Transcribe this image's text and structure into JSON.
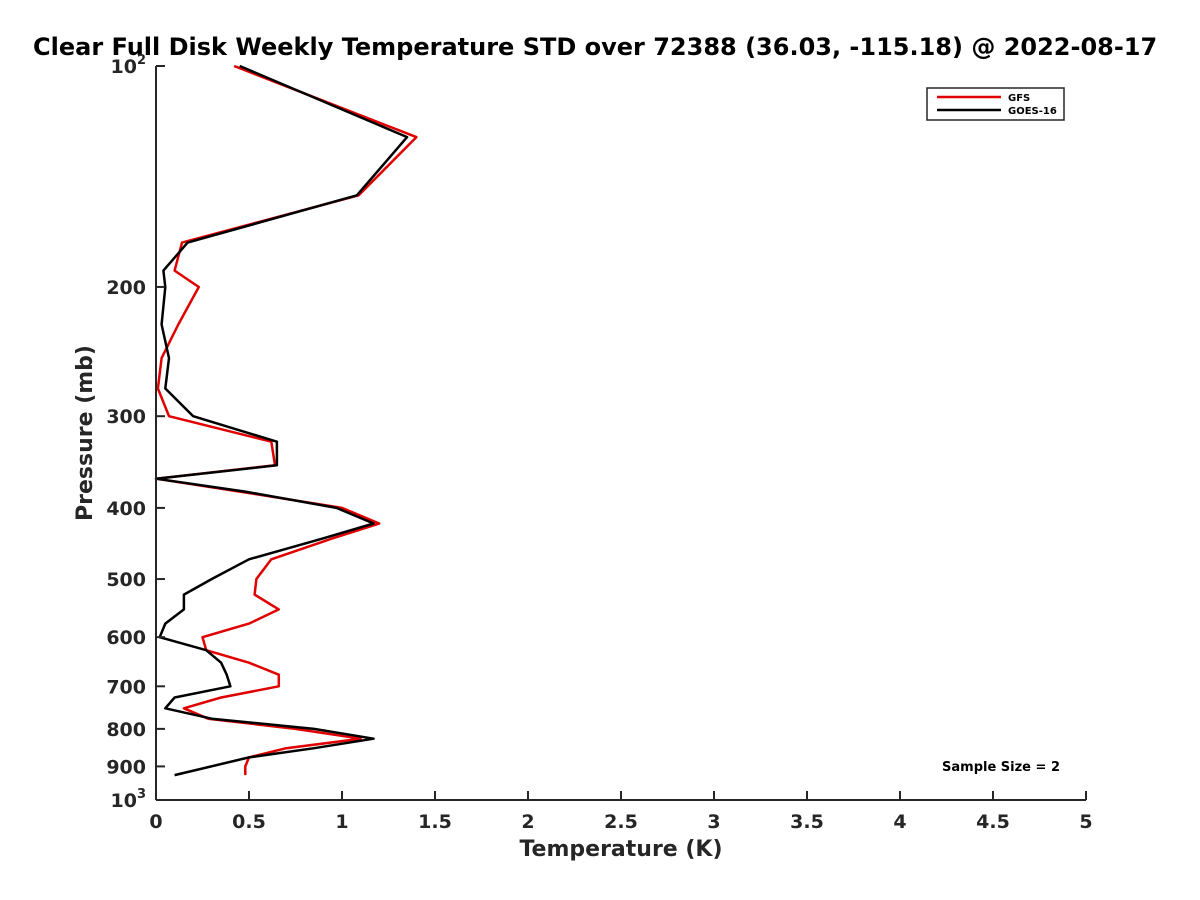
{
  "chart_data": {
    "type": "line",
    "title": "Clear Full Disk Weekly Temperature STD over 72388 (36.03, -115.18) @ 2022-08-17",
    "xlabel": "Temperature (K)",
    "ylabel": "Pressure (mb)",
    "xlim": [
      0,
      5
    ],
    "ylim": [
      100,
      1000
    ],
    "y_scale": "log",
    "y_reversed": true,
    "grid": false,
    "legend_position": "top-right",
    "x_ticks": [
      "0",
      "0.5",
      "1",
      "1.5",
      "2",
      "2.5",
      "3",
      "3.5",
      "4",
      "4.5",
      "5"
    ],
    "y_ticks": [
      {
        "value": 100,
        "base": "10",
        "exp": "2"
      },
      {
        "value": 200,
        "label": "200"
      },
      {
        "value": 300,
        "label": "300"
      },
      {
        "value": 400,
        "label": "400"
      },
      {
        "value": 500,
        "label": "500"
      },
      {
        "value": 600,
        "label": "600"
      },
      {
        "value": 700,
        "label": "700"
      },
      {
        "value": 800,
        "label": "800"
      },
      {
        "value": 900,
        "label": "900"
      },
      {
        "value": 1000,
        "base": "10",
        "exp": "3"
      }
    ],
    "annotation": "Sample Size = 2",
    "series": [
      {
        "name": "GFS",
        "color": "#e00000",
        "points": [
          [
            0.42,
            100
          ],
          [
            1.4,
            125
          ],
          [
            1.09,
            150
          ],
          [
            0.14,
            174
          ],
          [
            0.1,
            190
          ],
          [
            0.23,
            200
          ],
          [
            0.12,
            225
          ],
          [
            0.03,
            250
          ],
          [
            0.01,
            275
          ],
          [
            0.07,
            300
          ],
          [
            0.62,
            325
          ],
          [
            0.64,
            350
          ],
          [
            0.0,
            365
          ],
          [
            0.45,
            380
          ],
          [
            1.0,
            400
          ],
          [
            1.2,
            420
          ],
          [
            0.95,
            440
          ],
          [
            0.62,
            470
          ],
          [
            0.54,
            500
          ],
          [
            0.53,
            525
          ],
          [
            0.66,
            550
          ],
          [
            0.5,
            575
          ],
          [
            0.25,
            600
          ],
          [
            0.27,
            625
          ],
          [
            0.5,
            650
          ],
          [
            0.66,
            675
          ],
          [
            0.66,
            700
          ],
          [
            0.35,
            725
          ],
          [
            0.15,
            750
          ],
          [
            0.28,
            775
          ],
          [
            0.75,
            800
          ],
          [
            1.1,
            825
          ],
          [
            0.7,
            850
          ],
          [
            0.5,
            875
          ],
          [
            0.48,
            900
          ],
          [
            0.48,
            925
          ]
        ]
      },
      {
        "name": "GOES-16",
        "color": "#000000",
        "points": [
          [
            0.45,
            100
          ],
          [
            1.35,
            125
          ],
          [
            1.08,
            150
          ],
          [
            0.17,
            174
          ],
          [
            0.04,
            190
          ],
          [
            0.05,
            200
          ],
          [
            0.03,
            225
          ],
          [
            0.07,
            250
          ],
          [
            0.05,
            275
          ],
          [
            0.2,
            300
          ],
          [
            0.65,
            325
          ],
          [
            0.65,
            350
          ],
          [
            0.0,
            365
          ],
          [
            0.48,
            380
          ],
          [
            0.97,
            400
          ],
          [
            1.17,
            420
          ],
          [
            0.9,
            440
          ],
          [
            0.5,
            470
          ],
          [
            0.3,
            500
          ],
          [
            0.15,
            525
          ],
          [
            0.15,
            550
          ],
          [
            0.05,
            575
          ],
          [
            0.02,
            600
          ],
          [
            0.27,
            625
          ],
          [
            0.35,
            650
          ],
          [
            0.38,
            675
          ],
          [
            0.4,
            700
          ],
          [
            0.1,
            725
          ],
          [
            0.05,
            750
          ],
          [
            0.3,
            775
          ],
          [
            0.85,
            800
          ],
          [
            1.17,
            825
          ],
          [
            0.85,
            850
          ],
          [
            0.5,
            875
          ],
          [
            0.1,
            925
          ]
        ]
      }
    ]
  }
}
